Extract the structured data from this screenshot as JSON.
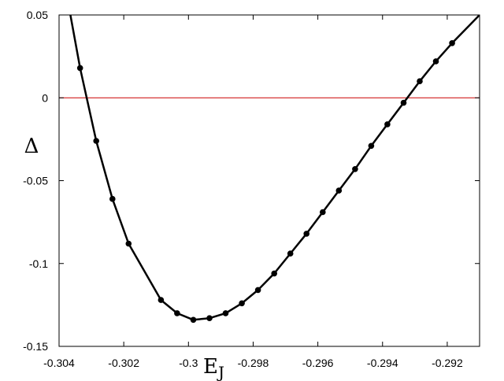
{
  "chart_data": {
    "type": "line",
    "title": "",
    "xlabel": "E",
    "xlabel_sub": "J",
    "ylabel": "Δ",
    "xlim": [
      -0.304,
      -0.291
    ],
    "ylim": [
      -0.15,
      0.05
    ],
    "x_ticks": [
      -0.304,
      -0.302,
      -0.3,
      -0.298,
      -0.296,
      -0.294,
      -0.292
    ],
    "x_tick_labels": [
      "-0.304",
      "-0.302",
      "-0.3",
      "-0.298",
      "-0.296",
      "-0.294",
      "-0.292"
    ],
    "y_ticks": [
      0.05,
      0,
      -0.05,
      -0.1,
      -0.15
    ],
    "y_tick_labels": [
      "0.05",
      "0",
      "-0.05",
      "-0.1",
      "-0.15"
    ],
    "reference_line": {
      "y": 0,
      "color": "#cc0000"
    },
    "grid": false,
    "legend": "none",
    "series": [
      {
        "color": "#000000",
        "x": [
          -0.30365,
          -0.30335,
          -0.30285,
          -0.30235,
          -0.30185,
          -0.30085,
          -0.30035,
          -0.29985,
          -0.29935,
          -0.29885,
          -0.29835,
          -0.29785,
          -0.29735,
          -0.29685,
          -0.29635,
          -0.29585,
          -0.29535,
          -0.29485,
          -0.29435,
          -0.29385,
          -0.29335,
          -0.29285,
          -0.29235,
          -0.29185,
          -0.291
        ],
        "y": [
          0.05,
          0.018,
          -0.026,
          -0.061,
          -0.088,
          -0.122,
          -0.13,
          -0.134,
          -0.133,
          -0.13,
          -0.124,
          -0.116,
          -0.106,
          -0.094,
          -0.082,
          -0.069,
          -0.056,
          -0.043,
          -0.029,
          -0.016,
          -0.003,
          0.01,
          0.022,
          0.033,
          0.05
        ],
        "markers": [
          false,
          true,
          true,
          true,
          true,
          true,
          true,
          true,
          true,
          true,
          true,
          true,
          true,
          true,
          true,
          true,
          true,
          true,
          true,
          true,
          true,
          true,
          true,
          true,
          false
        ]
      }
    ]
  }
}
